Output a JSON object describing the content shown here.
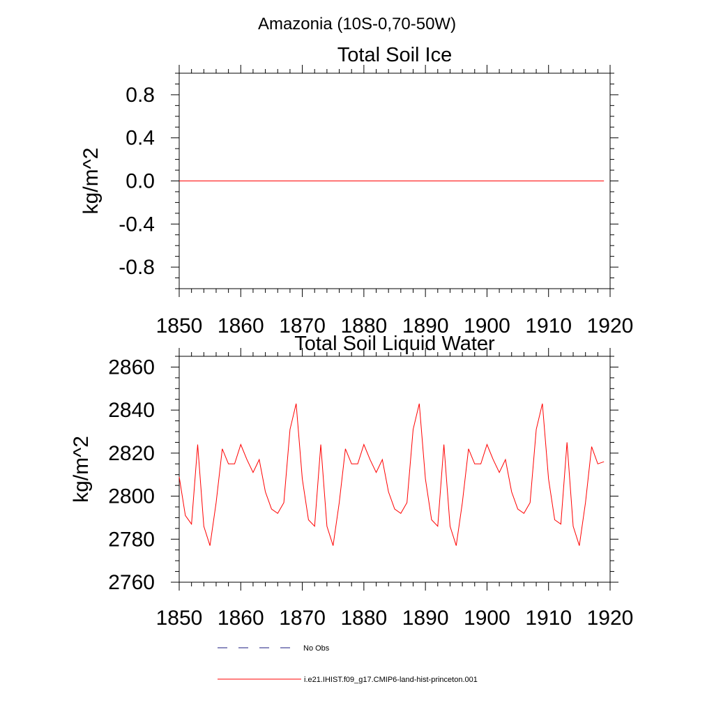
{
  "figure": {
    "main_title": "Amazonia (10S-0,70-50W)"
  },
  "colors": {
    "axis": "#000000",
    "model": "#ff0000",
    "obs": "#1a1a80",
    "background": "#ffffff"
  },
  "legend": {
    "placement": "bottom",
    "items": [
      {
        "label": "No Obs",
        "style": "dashed"
      },
      {
        "label": "i.e21.IHIST.f09_g17.CMIP6-land-hist-princeton.001",
        "style": "solid"
      }
    ]
  },
  "chart_data": [
    {
      "type": "line",
      "title": "Total Soil Ice",
      "xlabel": "",
      "ylabel": "kg/m^2",
      "xlim": [
        1850,
        1920
      ],
      "ylim": [
        -1.0,
        1.0
      ],
      "xticks": [
        1850,
        1860,
        1870,
        1880,
        1890,
        1900,
        1910,
        1920
      ],
      "xtick_labels": [
        "1850",
        "1860",
        "1870",
        "1880",
        "1890",
        "1900",
        "1910",
        "1920"
      ],
      "yticks": [
        -0.8,
        -0.4,
        0.0,
        0.4,
        0.8
      ],
      "ytick_labels": [
        "-0.8",
        "-0.4",
        "0.0",
        "0.4",
        "0.8"
      ],
      "grid": false,
      "series": [
        {
          "name": "i.e21.IHIST.f09_g17.CMIP6-land-hist-princeton.001",
          "x": [
            1850,
            1919
          ],
          "values": [
            0.0,
            0.0
          ]
        }
      ]
    },
    {
      "type": "line",
      "title": "Total Soil Liquid Water",
      "xlabel": "",
      "ylabel": "kg/m^2",
      "xlim": [
        1850,
        1920
      ],
      "ylim": [
        2760,
        2865
      ],
      "xticks": [
        1850,
        1860,
        1870,
        1880,
        1890,
        1900,
        1910,
        1920
      ],
      "xtick_labels": [
        "1850",
        "1860",
        "1870",
        "1880",
        "1890",
        "1900",
        "1910",
        "1920"
      ],
      "yticks": [
        2760,
        2780,
        2800,
        2820,
        2840,
        2860
      ],
      "ytick_labels": [
        "2760",
        "2780",
        "2800",
        "2820",
        "2840",
        "2860"
      ],
      "grid": false,
      "series": [
        {
          "name": "i.e21.IHIST.f09_g17.CMIP6-land-hist-princeton.001",
          "x": [
            1850,
            1851,
            1852,
            1853,
            1854,
            1855,
            1856,
            1857,
            1858,
            1859,
            1860,
            1861,
            1862,
            1863,
            1864,
            1865,
            1866,
            1867,
            1868,
            1869,
            1870,
            1871,
            1872,
            1873,
            1874,
            1875,
            1876,
            1877,
            1878,
            1879,
            1880,
            1881,
            1882,
            1883,
            1884,
            1885,
            1886,
            1887,
            1888,
            1889,
            1890,
            1891,
            1892,
            1893,
            1894,
            1895,
            1896,
            1897,
            1898,
            1899,
            1900,
            1901,
            1902,
            1903,
            1904,
            1905,
            1906,
            1907,
            1908,
            1909,
            1910,
            1911,
            1912,
            1913,
            1914,
            1915,
            1916,
            1917,
            1918,
            1919
          ],
          "values": [
            2809,
            2791,
            2787,
            2824,
            2786,
            2777,
            2797,
            2822,
            2815,
            2815,
            2824,
            2817,
            2811,
            2817,
            2802,
            2794,
            2792,
            2797,
            2831,
            2843,
            2808,
            2789,
            2786,
            2824,
            2786,
            2777,
            2797,
            2822,
            2815,
            2815,
            2824,
            2817,
            2811,
            2817,
            2802,
            2794,
            2792,
            2797,
            2831,
            2843,
            2808,
            2789,
            2786,
            2824,
            2786,
            2777,
            2797,
            2822,
            2815,
            2815,
            2824,
            2817,
            2811,
            2817,
            2802,
            2794,
            2792,
            2797,
            2831,
            2843,
            2808,
            2789,
            2787,
            2825,
            2786,
            2777,
            2797,
            2823,
            2815,
            2816
          ]
        }
      ]
    }
  ]
}
